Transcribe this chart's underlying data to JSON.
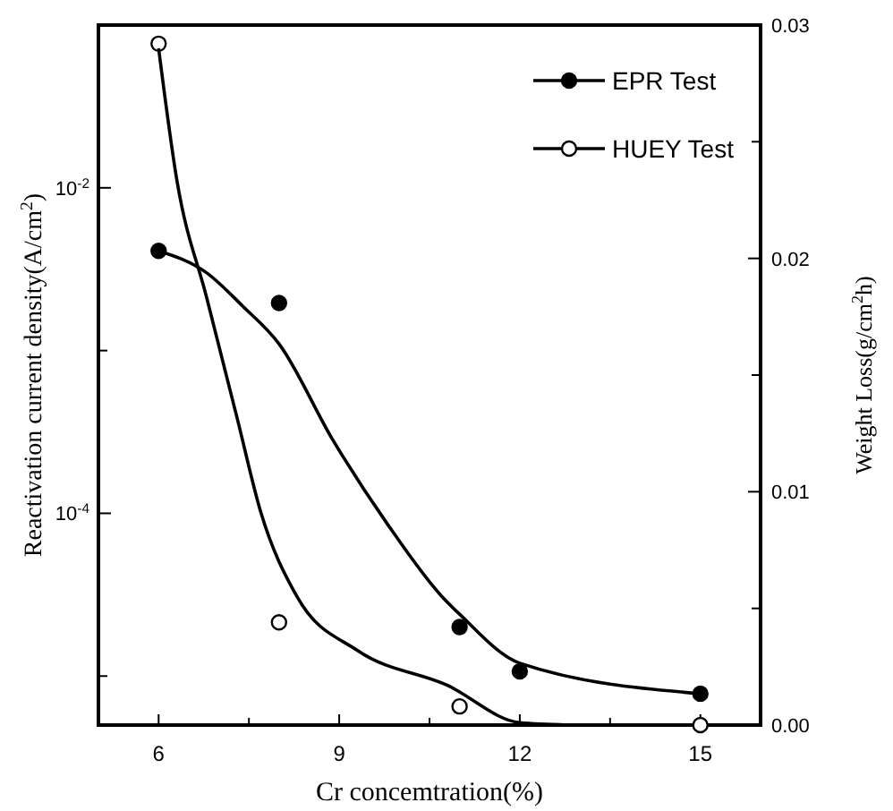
{
  "chart_data": {
    "type": "scatter",
    "xlabel": "Cr concemtration(%)",
    "ylabel": "Reactivation current density(A/cm$^{2}$)",
    "y2label": "Weight Loss(g/cm$^{2}$h)",
    "xlim": [
      5,
      16
    ],
    "xticks": [
      6,
      {
        "value": 7.5,
        "label": null
      },
      9,
      {
        "value": 10.5,
        "label": null
      },
      12,
      {
        "value": 13.5,
        "label": null
      },
      15
    ],
    "ylim": [
      5e-06,
      0.1
    ],
    "yticks": [
      {
        "value": 0.01,
        "label": "10$^{-2}$"
      },
      {
        "value": 0.001,
        "label": null
      },
      {
        "value": 0.0001,
        "label": "10$^{-4}$"
      },
      {
        "value": 1e-05,
        "label": null
      }
    ],
    "y2lim": [
      0,
      0.03
    ],
    "y2ticks": [
      {
        "value": 0,
        "label": "0.00"
      },
      {
        "value": 0.005,
        "label": null
      },
      {
        "value": 0.01,
        "label": "0.01"
      },
      {
        "value": 0.015,
        "label": null
      },
      {
        "value": 0.02,
        "label": "0.02"
      },
      {
        "value": 0.025,
        "label": null
      },
      {
        "value": 0.03,
        "label": "0.03"
      }
    ],
    "log": "y",
    "legend": "top right",
    "series": [
      {
        "name": "EPR Test",
        "marker": "circle",
        "axis": "y",
        "color": "#000000",
        "x": [
          6,
          8,
          11,
          12,
          15
        ],
        "values": [
          0.0041,
          0.00196,
          2e-05,
          1.07e-05,
          7.8e-06
        ]
      },
      {
        "name": "HUEY Test",
        "marker": "circle",
        "axis": "y2",
        "color": "#ffffff",
        "x": [
          6,
          8,
          11,
          15
        ],
        "values": [
          0.0292,
          0.0044,
          0.0008,
          0
        ]
      },
      {
        "type": "line",
        "axis": "y",
        "color": "#000000",
        "x": [
          6,
          6.8,
          7.4,
          8,
          8.9,
          9.8,
          10.7,
          11,
          12,
          15
        ],
        "values": [
          0.0041,
          0.003,
          0.00187,
          0.0011,
          0.00028,
          8.6e-05,
          3.1e-05,
          2.4e-05,
          1.2e-05,
          7.8e-06
        ]
      },
      {
        "type": "line",
        "axis": "y2",
        "color": "#000000",
        "x": [
          6,
          6.3,
          6.8,
          7.3,
          7.7,
          8.3,
          9.3,
          10.8,
          12,
          12.8
        ],
        "values": [
          0.029,
          0.0234,
          0.0183,
          0.0132,
          0.0091,
          0.0055,
          0.0032,
          0.0017,
          0.0001,
          0
        ]
      }
    ]
  }
}
